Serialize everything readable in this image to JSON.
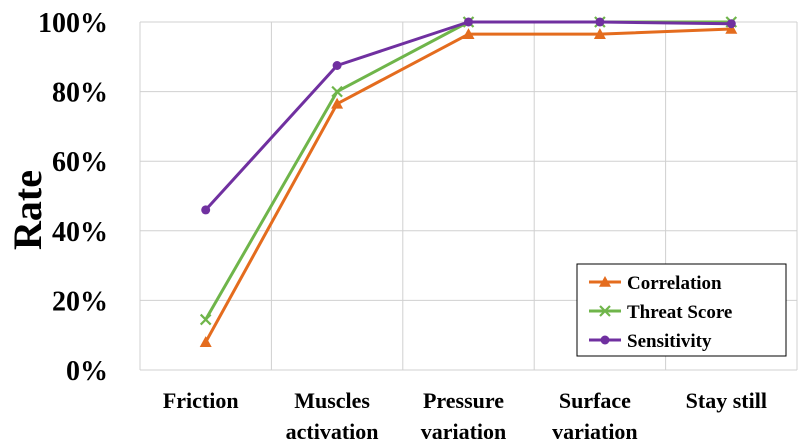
{
  "chart_data": {
    "type": "line",
    "categories": [
      [
        "Friction"
      ],
      [
        "Muscles",
        "activation"
      ],
      [
        "Pressure",
        "variation"
      ],
      [
        "Surface",
        "variation"
      ],
      [
        "Stay still"
      ]
    ],
    "ylabel": "Rate",
    "xlabel": "",
    "ylim": [
      0,
      100
    ],
    "ytick_labels": [
      "0%",
      "20%",
      "40%",
      "60%",
      "80%",
      "100%"
    ],
    "grid": true,
    "legend_position": "bottom-right",
    "series": [
      {
        "name": "Correlation",
        "marker": "triangle",
        "color": "#E46C1E",
        "values": [
          8,
          76.5,
          96.5,
          96.5,
          98
        ]
      },
      {
        "name": "Threat Score",
        "marker": "x",
        "color": "#6FB54A",
        "values": [
          14.5,
          80,
          100,
          100,
          100
        ]
      },
      {
        "name": "Sensitivity",
        "marker": "circle",
        "color": "#7030A0",
        "values": [
          46,
          87.5,
          100,
          100,
          99.5
        ]
      }
    ]
  }
}
